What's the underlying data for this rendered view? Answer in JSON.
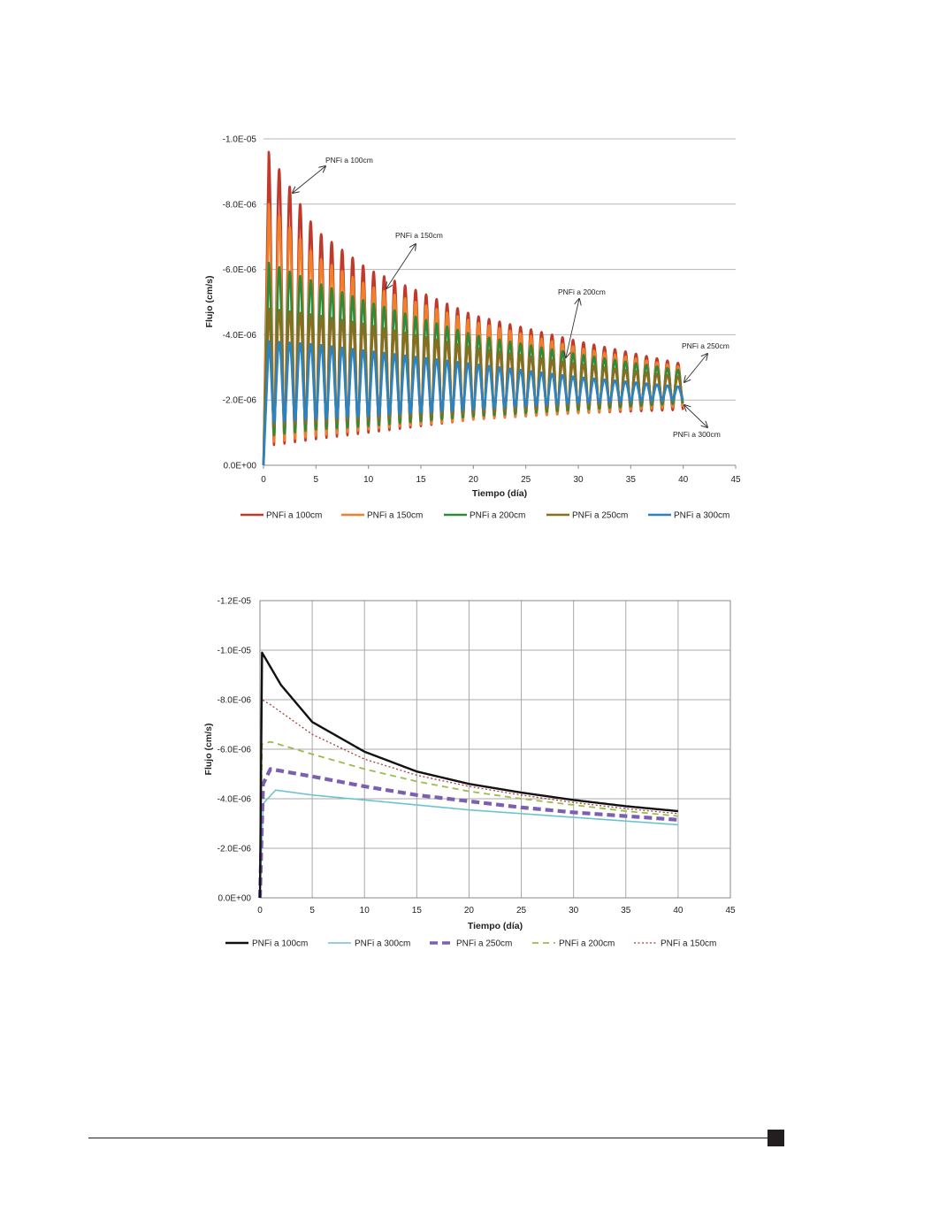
{
  "chart_data": [
    {
      "type": "line",
      "title": "",
      "xlabel": "Tiempo (día)",
      "ylabel": "Flujo (cm/s)",
      "xlim": [
        0,
        45
      ],
      "ylim": [
        0,
        -1e-05
      ],
      "xticks": [
        "0",
        "5",
        "10",
        "15",
        "20",
        "25",
        "30",
        "35",
        "40",
        "45"
      ],
      "yticks": [
        "0.0E+00",
        "-2.0E-06",
        "-4.0E-06",
        "-6.0E-06",
        "-8.0E-06",
        "-1.0E-05"
      ],
      "grid": "horizontal",
      "legend": "bottom",
      "oscillation_period_days": 1,
      "series": [
        {
          "name": "PNFi a 100cm",
          "color": "#c0392b",
          "x": [
            0.5,
            5,
            10,
            20,
            30,
            40
          ],
          "peaks": [
            -9.6e-06,
            -7.2e-06,
            -6e-06,
            -4.6e-06,
            -3.8e-06,
            -3.1e-06
          ],
          "troughs": [
            -6e-07,
            -8e-07,
            -1e-06,
            -1.4e-06,
            -1.6e-06,
            -1.7e-06
          ]
        },
        {
          "name": "PNFi a 150cm",
          "color": "#f0802a",
          "x": [
            0.5,
            5,
            10,
            20,
            30,
            40
          ],
          "peaks": [
            -8e-06,
            -6.4e-06,
            -5.5e-06,
            -4.4e-06,
            -3.6e-06,
            -3e-06
          ],
          "troughs": [
            -7e-07,
            -9e-07,
            -1.1e-06,
            -1.4e-06,
            -1.6e-06,
            -1.8e-06
          ]
        },
        {
          "name": "PNFi a 200cm",
          "color": "#2e8b3a",
          "x": [
            0.5,
            5,
            10,
            20,
            30,
            40
          ],
          "peaks": [
            -6.2e-06,
            -5.6e-06,
            -5e-06,
            -4e-06,
            -3.4e-06,
            -2.9e-06
          ],
          "troughs": [
            -9e-07,
            -1.1e-06,
            -1.2e-06,
            -1.5e-06,
            -1.7e-06,
            -1.9e-06
          ]
        },
        {
          "name": "PNFi a 250cm",
          "color": "#8a6d1e",
          "x": [
            0.5,
            5,
            10,
            20,
            30,
            40
          ],
          "peaks": [
            -4.8e-06,
            -4.6e-06,
            -4.3e-06,
            -3.6e-06,
            -3.1e-06,
            -2.7e-06
          ],
          "troughs": [
            -1.2e-06,
            -1.3e-06,
            -1.4e-06,
            -1.6e-06,
            -1.8e-06,
            -2e-06
          ]
        },
        {
          "name": "PNFi a 300cm",
          "color": "#2b83c4",
          "x": [
            0.5,
            5,
            10,
            20,
            30,
            40
          ],
          "peaks": [
            -3.8e-06,
            -3.7e-06,
            -3.5e-06,
            -3.1e-06,
            -2.7e-06,
            -2.4e-06
          ],
          "troughs": [
            -1.3e-06,
            -1.4e-06,
            -1.5e-06,
            -1.7e-06,
            -1.9e-06,
            -2e-06
          ]
        }
      ],
      "annotations": [
        {
          "text": "PNFi a 100cm"
        },
        {
          "text": "PNFi a 150cm"
        },
        {
          "text": "PNFi a 200cm"
        },
        {
          "text": "PNFi a 250cm"
        },
        {
          "text": "PNFi a 300cm"
        }
      ]
    },
    {
      "type": "line",
      "title": "",
      "xlabel": "Tiempo (día)",
      "ylabel": "Flujo (cm/s)",
      "xlim": [
        0,
        45
      ],
      "ylim": [
        0,
        -1.2e-05
      ],
      "xticks": [
        "0",
        "5",
        "10",
        "15",
        "20",
        "25",
        "30",
        "35",
        "40",
        "45"
      ],
      "yticks": [
        "0.0E+00",
        "-2.0E-06",
        "-4.0E-06",
        "-6.0E-06",
        "-8.0E-06",
        "-1.0E-05",
        "-1.2E-05"
      ],
      "grid": "both",
      "legend": "bottom",
      "series": [
        {
          "name": "PNFi a 100cm",
          "color": "#111111",
          "style": "solid",
          "x": [
            0,
            0.2,
            2,
            5,
            10,
            15,
            20,
            25,
            30,
            35,
            40
          ],
          "y": [
            0,
            -9.9e-06,
            -8.6e-06,
            -7.1e-06,
            -5.9e-06,
            -5.1e-06,
            -4.6e-06,
            -4.25e-06,
            -3.95e-06,
            -3.7e-06,
            -3.5e-06
          ]
        },
        {
          "name": "PNFi a 300cm",
          "color": "#6cc3d0",
          "style": "solid",
          "x": [
            0,
            0.3,
            1.5,
            5,
            10,
            15,
            20,
            25,
            30,
            35,
            40
          ],
          "y": [
            0,
            -3.8e-06,
            -4.35e-06,
            -4.15e-06,
            -3.95e-06,
            -3.75e-06,
            -3.55e-06,
            -3.4e-06,
            -3.25e-06,
            -3.1e-06,
            -2.95e-06
          ]
        },
        {
          "name": "PNFi a 250cm",
          "color": "#7d5fb0",
          "style": "dashed-thick",
          "x": [
            0,
            0.3,
            1,
            5,
            10,
            15,
            20,
            25,
            30,
            35,
            40
          ],
          "y": [
            0,
            -4.6e-06,
            -5.2e-06,
            -4.9e-06,
            -4.5e-06,
            -4.15e-06,
            -3.9e-06,
            -3.65e-06,
            -3.45e-06,
            -3.3e-06,
            -3.15e-06
          ]
        },
        {
          "name": "PNFi a 200cm",
          "color": "#9cbb4c",
          "style": "dashed",
          "x": [
            0,
            0.2,
            1,
            5,
            10,
            15,
            20,
            25,
            30,
            35,
            40
          ],
          "y": [
            0,
            -6.2e-06,
            -6.3e-06,
            -5.8e-06,
            -5.2e-06,
            -4.7e-06,
            -4.3e-06,
            -4e-06,
            -3.75e-06,
            -3.5e-06,
            -3.3e-06
          ]
        },
        {
          "name": "PNFi a 150cm",
          "color": "#b03a3a",
          "style": "dotted",
          "x": [
            0,
            0.2,
            1,
            5,
            10,
            15,
            20,
            25,
            30,
            35,
            40
          ],
          "y": [
            0,
            -8e-06,
            -7.8e-06,
            -6.6e-06,
            -5.6e-06,
            -4.95e-06,
            -4.5e-06,
            -4.15e-06,
            -3.85e-06,
            -3.6e-06,
            -3.4e-06
          ]
        }
      ]
    }
  ]
}
